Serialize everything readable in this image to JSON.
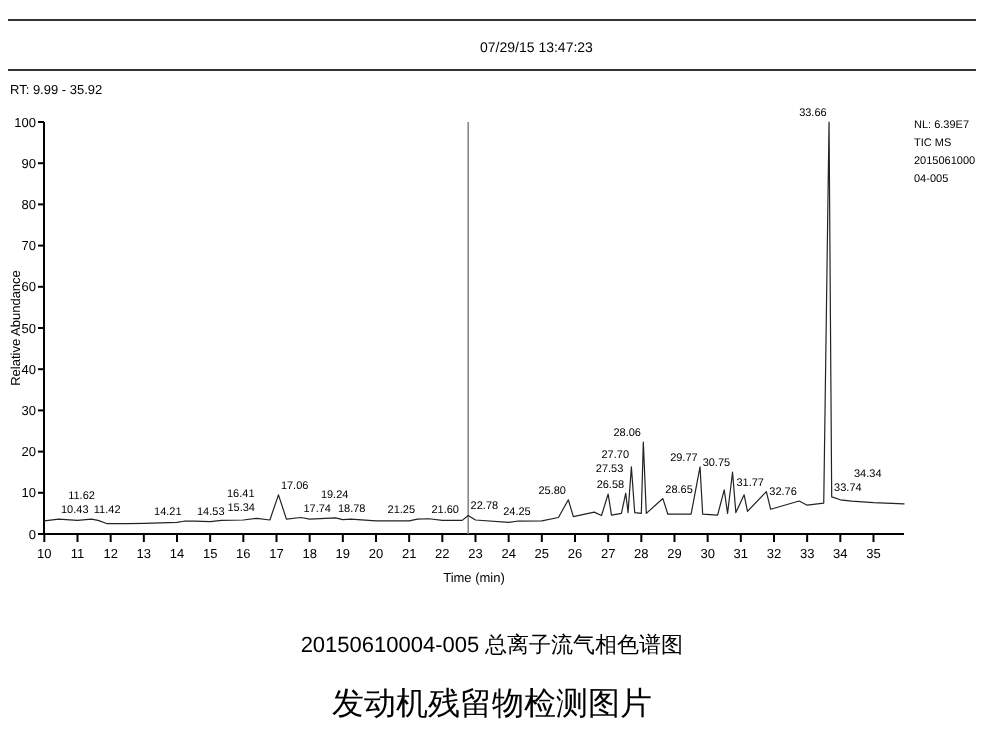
{
  "chart_data": {
    "type": "line",
    "title": "发动机残留物检测图片",
    "subtitle": "20150610004-005 总离子流气相色谱图",
    "xlabel": "Time (min)",
    "ylabel": "Relative Abundance",
    "color": "#222222",
    "xlim": [
      9.99,
      35.92
    ],
    "ylim": [
      0,
      100
    ],
    "xticks": [
      10,
      11,
      12,
      13,
      14,
      15,
      16,
      17,
      18,
      19,
      20,
      21,
      22,
      23,
      24,
      25,
      26,
      27,
      28,
      29,
      30,
      31,
      32,
      33,
      34,
      35
    ],
    "yticks": [
      0,
      10,
      20,
      30,
      40,
      50,
      60,
      70,
      80,
      90,
      100
    ],
    "x": [
      10,
      10.43,
      11,
      11.42,
      11.62,
      11.9,
      12.5,
      13,
      14,
      14.21,
      14.53,
      15,
      15.34,
      16,
      16.41,
      16.8,
      17.06,
      17.3,
      17.74,
      18,
      18.78,
      19,
      19.24,
      20,
      21,
      21.25,
      21.6,
      22,
      22.6,
      22.78,
      23,
      24,
      24.25,
      25,
      25.5,
      25.8,
      25.95,
      26.58,
      26.8,
      27.0,
      27.1,
      27.4,
      27.53,
      27.6,
      27.7,
      27.8,
      28.0,
      28.06,
      28.15,
      28.65,
      28.8,
      29.5,
      29.77,
      29.85,
      30.3,
      30.5,
      30.6,
      30.75,
      30.85,
      31.1,
      31.2,
      31.77,
      31.9,
      32.76,
      33,
      33.5,
      33.66,
      33.74,
      34,
      34.34,
      35,
      35.92
    ],
    "values": [
      3.2,
      3.6,
      3.3,
      3.6,
      3.3,
      2.5,
      2.5,
      2.6,
      2.8,
      3.1,
      3.1,
      3,
      3.3,
      3.4,
      3.8,
      3.4,
      9.5,
      3.6,
      4,
      3.6,
      3.9,
      3.5,
      3.6,
      3.2,
      3.2,
      3.6,
      3.7,
      3.3,
      3.3,
      4.5,
      3.4,
      2.8,
      3.1,
      3.2,
      4,
      8.3,
      4.2,
      5.3,
      4.5,
      9.7,
      4.6,
      5,
      9.9,
      5.2,
      16.3,
      5.2,
      5,
      22.3,
      5,
      8.6,
      4.8,
      4.8,
      16.3,
      4.8,
      4.6,
      10.7,
      5,
      15,
      5.2,
      9.5,
      5.5,
      10.3,
      6,
      8,
      7,
      7.5,
      100,
      9,
      8.3,
      8,
      7.6,
      7.3
    ],
    "ref_lines": [
      {
        "axis": "x",
        "value": 22.78,
        "color": "#888888"
      }
    ],
    "annotations": [
      "07/29/15 13:47:23",
      "RT: 9.99 - 35.92",
      "NL: 6.39E7",
      "TIC MS",
      "2015061000",
      "04-005",
      {
        "text": "10.43",
        "x": 10.43,
        "y": 3.6
      },
      {
        "text": "11.42",
        "x": 11.42,
        "y": 3.6
      },
      {
        "text": "11.62",
        "x": 11.62,
        "y": 3.3
      },
      {
        "text": "14.21",
        "x": 14.21,
        "y": 3.1
      },
      {
        "text": "14.53",
        "x": 14.53,
        "y": 3.1
      },
      {
        "text": "15.34",
        "x": 15.34,
        "y": 3.3
      },
      {
        "text": "16.41",
        "x": 16.41,
        "y": 3.8
      },
      {
        "text": "17.06",
        "x": 17.06,
        "y": 9.5
      },
      {
        "text": "17.74",
        "x": 17.74,
        "y": 4
      },
      {
        "text": "18.78",
        "x": 18.78,
        "y": 3.9
      },
      {
        "text": "19.24",
        "x": 19.24,
        "y": 3.6
      },
      {
        "text": "21.25",
        "x": 21.25,
        "y": 3.6
      },
      {
        "text": "21.60",
        "x": 21.6,
        "y": 3.7
      },
      {
        "text": "22.78",
        "x": 22.78,
        "y": 4.5
      },
      {
        "text": "24.25",
        "x": 24.25,
        "y": 3.1
      },
      {
        "text": "25.80",
        "x": 25.8,
        "y": 8.3
      },
      {
        "text": "26.58",
        "x": 26.58,
        "y": 5.3
      },
      {
        "text": "27.53",
        "x": 27.53,
        "y": 9.9
      },
      {
        "text": "27.70",
        "x": 27.7,
        "y": 16.3
      },
      {
        "text": "28.06",
        "x": 28.06,
        "y": 22.3
      },
      {
        "text": "28.65",
        "x": 28.65,
        "y": 8.6
      },
      {
        "text": "29.77",
        "x": 29.77,
        "y": 16.3
      },
      {
        "text": "30.75",
        "x": 30.75,
        "y": 15
      },
      {
        "text": "31.77",
        "x": 31.77,
        "y": 10.3
      },
      {
        "text": "32.76",
        "x": 32.76,
        "y": 8
      },
      {
        "text": "33.66",
        "x": 33.66,
        "y": 100
      },
      {
        "text": "33.74",
        "x": 33.74,
        "y": 9
      },
      {
        "text": "34.34",
        "x": 34.34,
        "y": 8
      }
    ]
  }
}
